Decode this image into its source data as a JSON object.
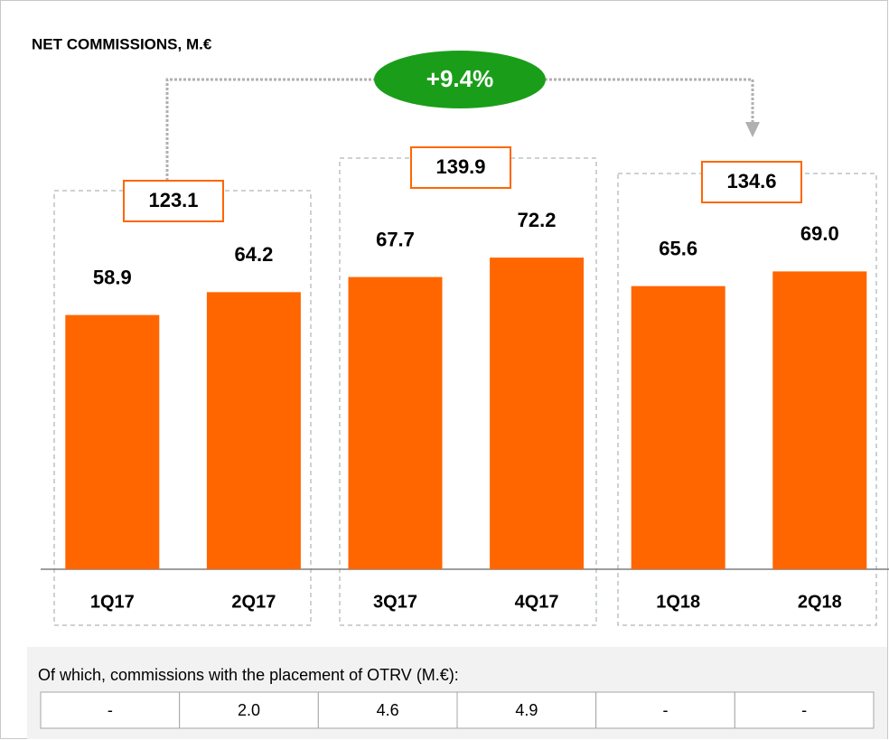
{
  "chart_data": {
    "type": "bar",
    "title": "NET COMMISSIONS, M.€",
    "categories": [
      "1Q17",
      "2Q17",
      "3Q17",
      "4Q17",
      "1Q18",
      "2Q18"
    ],
    "values": [
      58.9,
      64.2,
      67.7,
      72.2,
      65.6,
      69.0
    ],
    "value_labels": [
      "58.9",
      "64.2",
      "67.7",
      "72.2",
      "65.6",
      "69.0"
    ],
    "color": "#ff6600",
    "ylim": [
      0,
      130
    ],
    "totals": [
      123.1,
      139.9,
      134.6
    ],
    "annotation": "+9.4%"
  },
  "table": {
    "caption": "Of which, commissions with the placement of OTRV (M.€):",
    "cells": [
      "-",
      "2.0",
      "4.6",
      "4.9",
      "-",
      "-"
    ]
  }
}
